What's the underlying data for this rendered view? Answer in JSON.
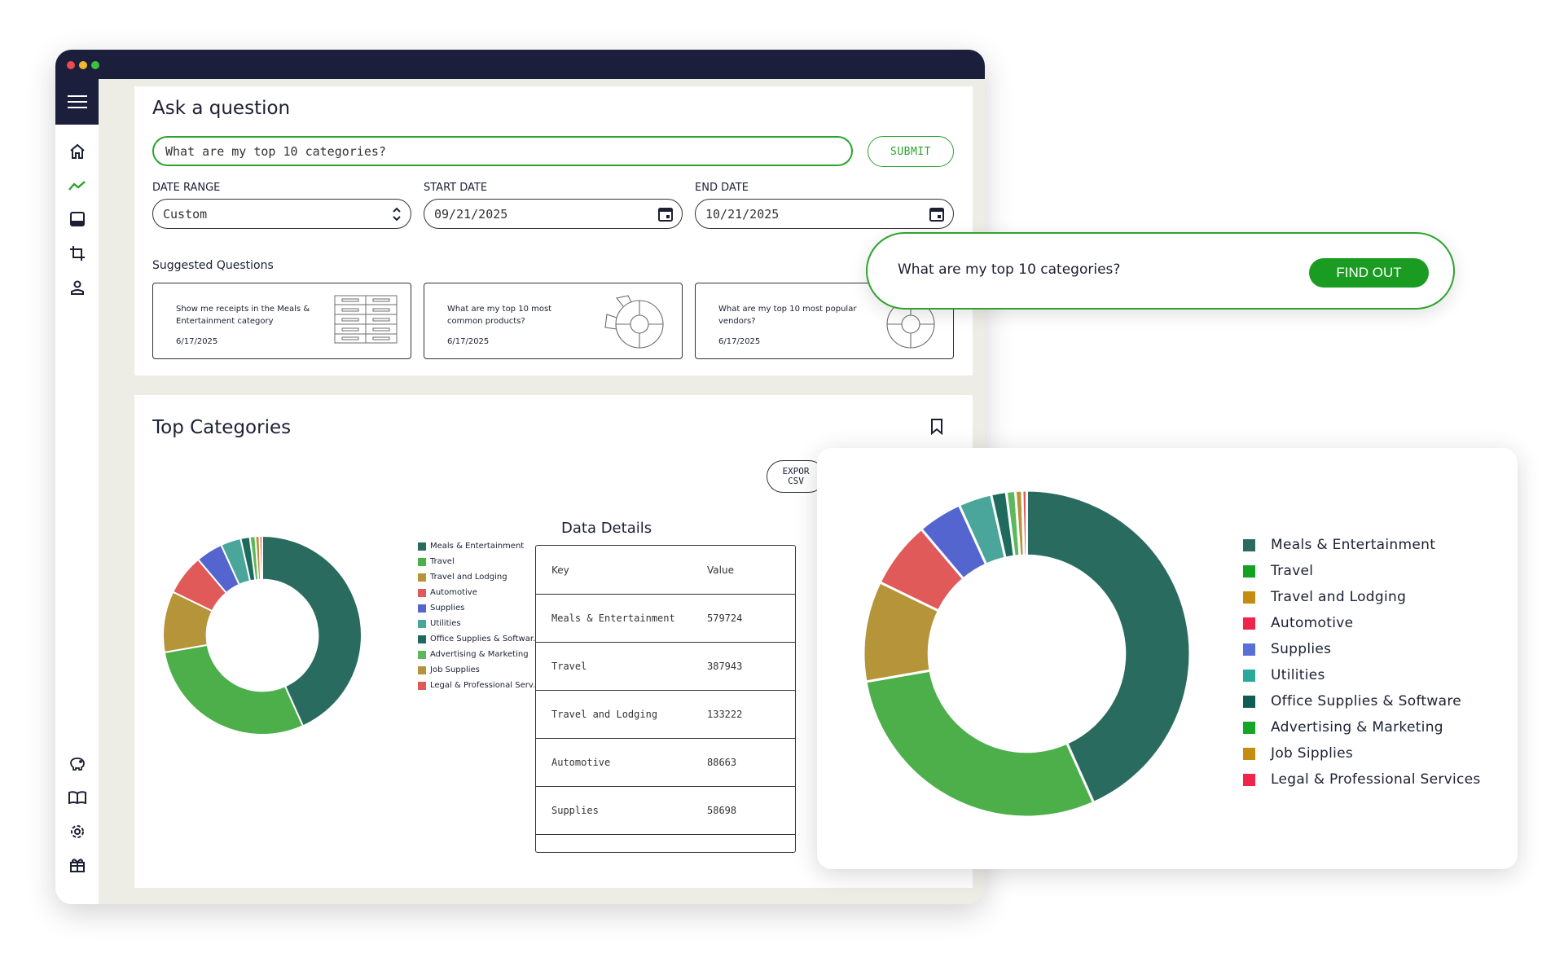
{
  "window": {
    "dots": [
      "#ed4a4a",
      "#f2b92b",
      "#3cc23e"
    ]
  },
  "sidebar": {
    "menu_icon": "hamburger-icon",
    "top_items": [
      "home-icon",
      "trend-icon",
      "inbox-icon",
      "crop-icon",
      "user-icon"
    ],
    "bottom_items": [
      "piggy-bank-icon",
      "book-icon",
      "gear-icon",
      "gift-icon"
    ]
  },
  "ask": {
    "title": "Ask a question",
    "question_value": "What are my top 10 categories?",
    "submit_label": "SUBMIT",
    "date_range_label": "DATE RANGE",
    "date_range_value": "Custom",
    "start_date_label": "START DATE",
    "start_date_value": "09/21/2025",
    "end_date_label": "END DATE",
    "end_date_value": "10/21/2025",
    "suggested_label": "Suggested Questions",
    "suggestions": [
      {
        "text": "Show me receipts in the Meals & Entertainment category",
        "date": "6/17/2025"
      },
      {
        "text": "What are my top 10 most common products?",
        "date": "6/17/2025"
      },
      {
        "text": "What are my top 10 most popular vendors?",
        "date": "6/17/2025"
      }
    ]
  },
  "top_categories": {
    "title": "Top Categories",
    "export_label_1": "EXPOR",
    "export_label_2": "CSV",
    "legend_small": [
      "Meals & Entertainment",
      "Travel",
      "Travel and Lodging",
      "Automotive",
      "Supplies",
      "Utilities",
      "Office Supplies & Softwar...",
      "Advertising & Marketing",
      "Job Supplies",
      "Legal & Professional Serv..."
    ],
    "data_details_title": "Data Details",
    "table_headers": {
      "key": "Key",
      "value": "Value"
    },
    "table_rows": [
      {
        "key": "Meals & Entertainment",
        "value": "579724"
      },
      {
        "key": "Travel",
        "value": "387943"
      },
      {
        "key": "Travel and Lodging",
        "value": "133222"
      },
      {
        "key": "Automotive",
        "value": "88663"
      },
      {
        "key": "Supplies",
        "value": "58698"
      }
    ]
  },
  "callout_find": {
    "question": "What are my top 10 categories?",
    "button_label": "FIND OUT"
  },
  "callout_chart": {
    "legend": [
      "Meals & Entertainment",
      "Travel",
      "Travel and Lodging",
      "Automotive",
      "Supplies",
      "Utilities",
      "Office Supplies & Software",
      "Advertising & Marketing",
      "Job Sipplies",
      "Legal & Professional Services"
    ],
    "legend_colors": [
      "#2a6b60",
      "#12a121",
      "#c48d12",
      "#f0254b",
      "#5b6fd8",
      "#2aa99c",
      "#115c55",
      "#14a626",
      "#c48d12",
      "#f0254b"
    ]
  },
  "chart_data": {
    "type": "pie",
    "categories": [
      "Meals & Entertainment",
      "Travel",
      "Travel and Lodging",
      "Automotive",
      "Supplies",
      "Utilities",
      "Office Supplies & Software",
      "Advertising & Marketing",
      "Job Supplies",
      "Legal & Professional Services"
    ],
    "values": [
      579724,
      387943,
      133222,
      88663,
      58698,
      44000,
      20000,
      12000,
      9000,
      6000
    ],
    "colors": [
      "#2a6b60",
      "#4daf4a",
      "#b5943a",
      "#e05a5a",
      "#5465d0",
      "#4aa59b",
      "#1e6a5c",
      "#5cb85c",
      "#b5943a",
      "#e05a5a"
    ],
    "donut": true,
    "legend": "right"
  }
}
